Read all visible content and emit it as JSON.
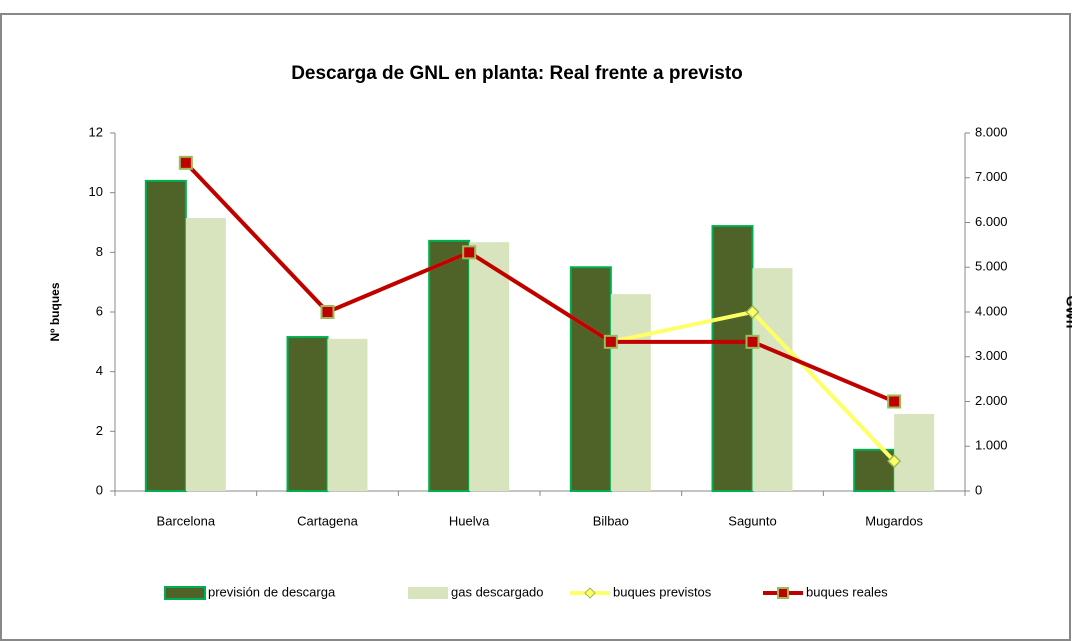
{
  "chart_data": {
    "type": "bar_line",
    "title": "Descarga de GNL en planta:  Real frente a previsto",
    "ylabel": "Nº buques",
    "y2label": "GWh",
    "categories": [
      "Barcelona",
      "Cartagena",
      "Huelva",
      "Bilbao",
      "Sagunto",
      "Mugardos"
    ],
    "ylim": [
      0,
      12
    ],
    "yticks": [
      0,
      2,
      4,
      6,
      8,
      10,
      12
    ],
    "y2lim": [
      0,
      8000
    ],
    "y2ticks": [
      0,
      {
        "value": 1000,
        "label": "1.000"
      },
      {
        "value": 2000,
        "label": "2.000"
      },
      {
        "value": 3000,
        "label": "3.000"
      },
      {
        "value": 4000,
        "label": "4.000"
      },
      {
        "value": 5000,
        "label": "5.000"
      },
      {
        "value": 6000,
        "label": "6.000"
      },
      {
        "value": 7000,
        "label": "7.000"
      },
      {
        "value": 8000,
        "label": "8.000"
      }
    ],
    "series": [
      {
        "name": "previsión de descarga",
        "type": "bar",
        "axis": "y2",
        "color": "#4f6228",
        "values": [
          6930,
          3440,
          5590,
          5000,
          5920,
          920
        ]
      },
      {
        "name": "gas descargado",
        "type": "bar",
        "axis": "y2",
        "color": "#d7e4bd",
        "values": [
          6100,
          3400,
          5560,
          4400,
          4980,
          1720
        ]
      },
      {
        "name": "buques previstos",
        "type": "line",
        "axis": "y",
        "color": "#ffff66",
        "values": [
          11,
          6,
          8,
          5,
          6,
          1
        ]
      },
      {
        "name": "buques reales",
        "type": "line",
        "axis": "y",
        "color": "#c00000",
        "values": [
          11,
          6,
          8,
          5,
          5,
          3
        ]
      }
    ]
  }
}
